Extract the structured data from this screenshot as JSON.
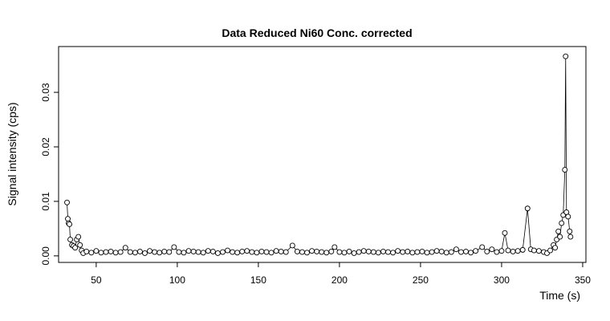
{
  "chart_data": {
    "type": "scatter",
    "title": "Data Reduced Ni60 Conc. corrected",
    "x_label": "Time (s)",
    "y_label": "Signal intensity (cps)",
    "xlim": [
      26.8,
      352
    ],
    "ylim": [
      -0.0012,
      0.0384
    ],
    "xticks": [
      50,
      100,
      150,
      200,
      250,
      300,
      350
    ],
    "yticks": [
      {
        "value": 0,
        "label": "0.00"
      },
      {
        "value": 0.01,
        "label": "0.01"
      },
      {
        "value": 0.02,
        "label": "0.02"
      },
      {
        "value": 0.03,
        "label": "0.03"
      }
    ],
    "color": "#000000",
    "series": [
      {
        "x": [
          32,
          32.5,
          33,
          33.5,
          34,
          35,
          36,
          37,
          38,
          39,
          40,
          41,
          42,
          44,
          47,
          50,
          53,
          56,
          59,
          62,
          65,
          68,
          71,
          74,
          77,
          80,
          83,
          86,
          89,
          92,
          95,
          98,
          101,
          104,
          107,
          110,
          113,
          116,
          119,
          122,
          125,
          128,
          131,
          134,
          137,
          140,
          143,
          146,
          149,
          152,
          155,
          158,
          161,
          164,
          167,
          171,
          174,
          177,
          180,
          183,
          186,
          189,
          192,
          195,
          197,
          200,
          203,
          206,
          209,
          212,
          215,
          218,
          221,
          224,
          227,
          230,
          233,
          236,
          239,
          242,
          245,
          248,
          251,
          254,
          257,
          260,
          263,
          266,
          269,
          272,
          275,
          278,
          281,
          284,
          288,
          291,
          294,
          297,
          300,
          302,
          304,
          307,
          310,
          313,
          316,
          318,
          320,
          323,
          326,
          328,
          330,
          332,
          333,
          334,
          335,
          336,
          337,
          338,
          339,
          339.5,
          340,
          341,
          342,
          342.5
        ],
        "values": [
          0.0098,
          0.0068,
          0.006,
          0.0058,
          0.003,
          0.002,
          0.0018,
          0.0015,
          0.003,
          0.0035,
          0.002,
          0.001,
          0.0005,
          0.0008,
          0.0006,
          0.0009,
          0.0006,
          0.0007,
          0.0008,
          0.0006,
          0.0007,
          0.0015,
          0.0007,
          0.0006,
          0.0008,
          0.0005,
          0.0009,
          0.0007,
          0.0006,
          0.0008,
          0.0007,
          0.0016,
          0.0007,
          0.0006,
          0.0009,
          0.0008,
          0.0007,
          0.0006,
          0.0009,
          0.0008,
          0.0005,
          0.0007,
          0.001,
          0.0007,
          0.0006,
          0.0008,
          0.0009,
          0.0007,
          0.0006,
          0.0008,
          0.0007,
          0.0006,
          0.0009,
          0.0008,
          0.0007,
          0.0019,
          0.0008,
          0.0007,
          0.0006,
          0.0009,
          0.0008,
          0.0007,
          0.0006,
          0.0008,
          0.0016,
          0.0007,
          0.0006,
          0.0008,
          0.0005,
          0.0007,
          0.0009,
          0.0008,
          0.0007,
          0.0006,
          0.0008,
          0.0007,
          0.0006,
          0.0009,
          0.0007,
          0.0008,
          0.0006,
          0.0007,
          0.0008,
          0.0006,
          0.0007,
          0.0009,
          0.0008,
          0.0006,
          0.0007,
          0.0012,
          0.0007,
          0.0008,
          0.0006,
          0.0009,
          0.0016,
          0.0008,
          0.0012,
          0.0007,
          0.0009,
          0.0042,
          0.001,
          0.0008,
          0.0009,
          0.0011,
          0.0087,
          0.0012,
          0.001,
          0.0009,
          0.0007,
          0.0005,
          0.001,
          0.002,
          0.0015,
          0.003,
          0.0045,
          0.0035,
          0.006,
          0.0075,
          0.0158,
          0.0366,
          0.008,
          0.0072,
          0.0045,
          0.0035
        ]
      }
    ]
  }
}
